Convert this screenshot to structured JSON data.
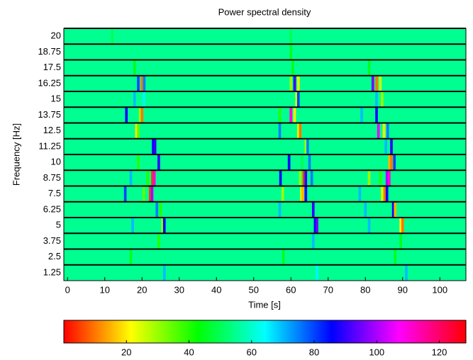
{
  "chart_data": {
    "type": "heatmap",
    "title": "Power spectral density",
    "xlabel": "Time  [s]",
    "ylabel": "Frequency  [Hz]",
    "xlim": [
      -1,
      107
    ],
    "xticks": [
      0,
      10,
      20,
      30,
      40,
      50,
      60,
      70,
      80,
      90,
      100
    ],
    "rows": [
      "20",
      "18.75",
      "17.5",
      "16.25",
      "15",
      "13.75",
      "12.5",
      "11.25",
      "10",
      "8.75",
      "7.5",
      "6.25",
      "5",
      "3.75",
      "2.5",
      "1.25"
    ],
    "base_value": 55,
    "stripe_width": 0.7,
    "events": [
      [
        [
          12,
          50
        ],
        [
          60,
          50
        ]
      ],
      [
        [
          60,
          45
        ]
      ],
      [
        [
          18,
          45
        ],
        [
          60.5,
          45
        ],
        [
          81,
          45
        ]
      ],
      [
        [
          19,
          80
        ],
        [
          20,
          10
        ],
        [
          20.6,
          75
        ],
        [
          60,
          30
        ],
        [
          61,
          90
        ],
        [
          62,
          20
        ],
        [
          82,
          95
        ],
        [
          83,
          10
        ],
        [
          84,
          25
        ]
      ],
      [
        [
          18,
          70
        ],
        [
          20.5,
          65
        ],
        [
          61.5,
          25
        ],
        [
          62,
          80
        ],
        [
          83,
          70
        ],
        [
          84.5,
          30
        ]
      ],
      [
        [
          15.8,
          85
        ],
        [
          19.5,
          30
        ],
        [
          20,
          10
        ],
        [
          57,
          40
        ],
        [
          60,
          110
        ],
        [
          61,
          20
        ],
        [
          79,
          70
        ],
        [
          83,
          85
        ]
      ],
      [
        [
          18.5,
          20
        ],
        [
          19,
          35
        ],
        [
          57,
          75
        ],
        [
          62,
          25
        ],
        [
          62.5,
          10
        ],
        [
          83.5,
          105
        ],
        [
          85,
          20
        ],
        [
          86,
          75
        ]
      ],
      [
        [
          23,
          85
        ],
        [
          23.5,
          90
        ],
        [
          64,
          30
        ],
        [
          64.5,
          75
        ],
        [
          85.5,
          70
        ],
        [
          87,
          90
        ]
      ],
      [
        [
          19,
          40
        ],
        [
          24.5,
          90
        ],
        [
          59.5,
          85
        ],
        [
          63,
          50
        ],
        [
          65,
          75
        ],
        [
          86.5,
          15
        ],
        [
          87,
          10
        ],
        [
          87.8,
          80
        ]
      ],
      [
        [
          17,
          70
        ],
        [
          21.5,
          40
        ],
        [
          22.8,
          5
        ],
        [
          23.3,
          110
        ],
        [
          57.2,
          85
        ],
        [
          62.5,
          30
        ],
        [
          63.5,
          5
        ],
        [
          64,
          90
        ],
        [
          65.6,
          75
        ],
        [
          81,
          30
        ],
        [
          84,
          40
        ],
        [
          85.8,
          100
        ],
        [
          86.4,
          110
        ]
      ],
      [
        [
          15.5,
          80
        ],
        [
          20.5,
          35
        ],
        [
          22.2,
          5
        ],
        [
          22.7,
          100
        ],
        [
          57.8,
          30
        ],
        [
          62.8,
          25
        ],
        [
          63.2,
          15
        ],
        [
          64,
          85
        ],
        [
          78.5,
          70
        ],
        [
          84.5,
          25
        ],
        [
          85.2,
          10
        ],
        [
          85.8,
          85
        ]
      ],
      [
        [
          24,
          75
        ],
        [
          25,
          40
        ],
        [
          57,
          70
        ],
        [
          66,
          90
        ],
        [
          80,
          70
        ],
        [
          87.5,
          85
        ],
        [
          88,
          15
        ]
      ],
      [
        [
          17.5,
          70
        ],
        [
          25.5,
          30
        ],
        [
          26,
          85
        ],
        [
          66.5,
          85
        ],
        [
          67,
          95
        ],
        [
          81,
          70
        ],
        [
          89.5,
          20
        ],
        [
          90,
          10
        ]
      ],
      [
        [
          24.5,
          40
        ],
        [
          66,
          70
        ],
        [
          89.5,
          45
        ]
      ],
      [
        [
          17,
          45
        ],
        [
          58,
          45
        ],
        [
          88,
          45
        ]
      ],
      [
        [
          26,
          70
        ],
        [
          67,
          65
        ],
        [
          91,
          70
        ]
      ]
    ],
    "colormap": "hsv",
    "clim": [
      0,
      128.5
    ],
    "cticks": [
      20,
      40,
      60,
      80,
      100,
      120
    ]
  }
}
